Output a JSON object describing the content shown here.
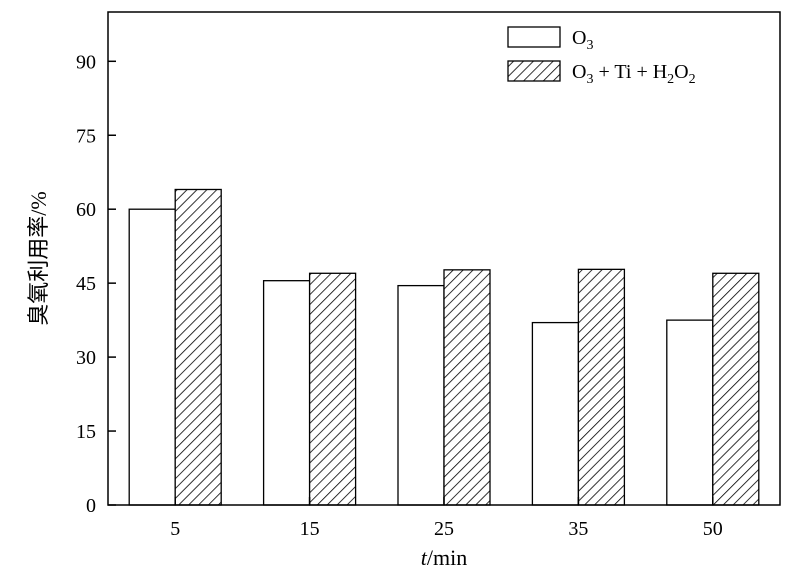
{
  "chart_data": {
    "type": "bar",
    "categories": [
      "5",
      "15",
      "25",
      "35",
      "50"
    ],
    "series": [
      {
        "name": "O3",
        "legend": {
          "base": "O",
          "sub": "3",
          "rest": ""
        },
        "fill": "white",
        "values": [
          60,
          45.5,
          44.5,
          37,
          37.5
        ]
      },
      {
        "name": "O3 + Ti + H2O2",
        "legend": {
          "base": "O",
          "sub": "3",
          "rest": " + Ti + H",
          "sub2": "2",
          "base2": "O",
          "sub3": "2"
        },
        "fill": "hatch",
        "values": [
          64,
          47,
          47.7,
          47.8,
          47
        ]
      }
    ],
    "xlabel": {
      "italic": "t",
      "rest": "/min"
    },
    "ylabel": "臭氧利用率/%",
    "yticks": [
      0,
      15,
      30,
      45,
      60,
      75,
      90
    ],
    "ylim": [
      0,
      100
    ],
    "legend_position": "top-right",
    "grid": false
  }
}
